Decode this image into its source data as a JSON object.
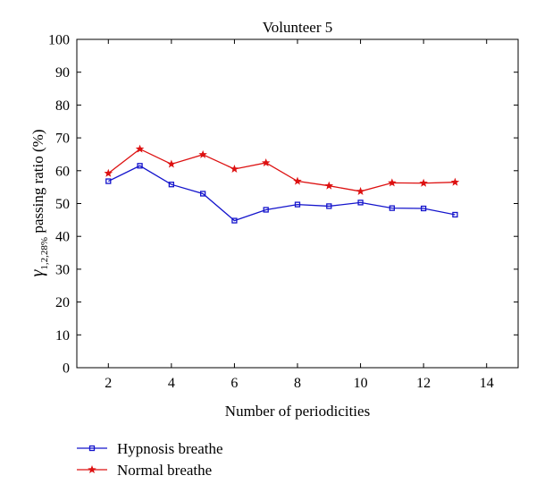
{
  "chart_data": {
    "type": "line",
    "title": "Volunteer 5",
    "xlabel": "Number of periodicities",
    "ylabel": {
      "symbol": "γ",
      "subscript": "1,2,28%",
      "text": " passing ratio (%)"
    },
    "xlim": [
      1,
      15
    ],
    "ylim": [
      0,
      100
    ],
    "xticks": [
      2,
      4,
      6,
      8,
      10,
      12,
      14
    ],
    "yticks": [
      0,
      10,
      20,
      30,
      40,
      50,
      60,
      70,
      80,
      90,
      100
    ],
    "grid": false,
    "legend_position": "bottom-left, below plot",
    "x": [
      2,
      3,
      4,
      5,
      6,
      7,
      8,
      9,
      10,
      11,
      12,
      13
    ],
    "series": [
      {
        "name": "Hypnosis breathe",
        "color": "#1414cc",
        "marker": "square",
        "values": [
          56.8,
          61.5,
          55.8,
          53.0,
          44.8,
          48.1,
          49.7,
          49.2,
          50.3,
          48.6,
          48.5,
          46.6
        ]
      },
      {
        "name": "Normal breathe",
        "color": "#dd1111",
        "marker": "star",
        "values": [
          59.2,
          66.6,
          62.0,
          64.9,
          60.5,
          62.4,
          56.8,
          55.4,
          53.7,
          56.3,
          56.2,
          56.5
        ]
      }
    ]
  }
}
